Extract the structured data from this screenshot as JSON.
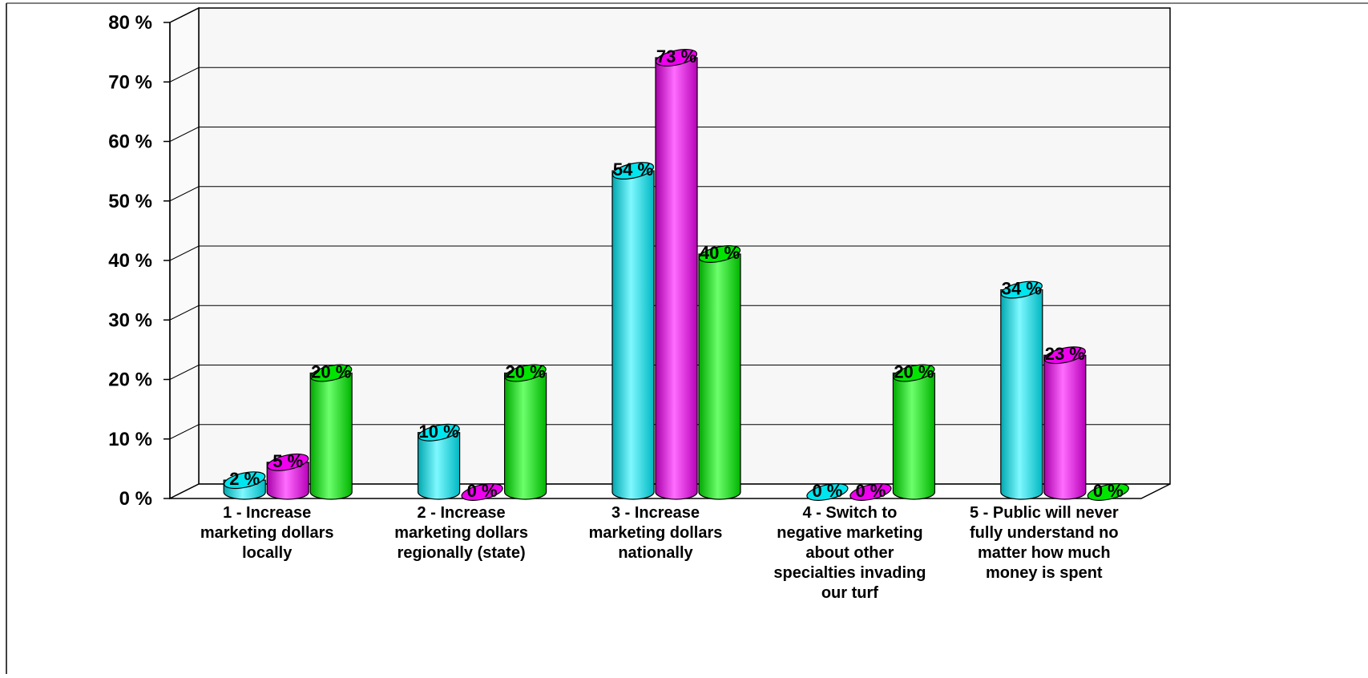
{
  "chart_data": {
    "type": "bar",
    "style": "3d-cylinder",
    "categories": [
      "1 - Increase marketing dollars locally",
      "2 - Increase marketing dollars regionally (state)",
      "3 - Increase marketing dollars nationally",
      "4 - Switch to negative marketing about other specialties invading our turf",
      "5 - Public will never fully understand no matter how much money is spent"
    ],
    "category_lines": [
      [
        "1 - Increase",
        "marketing dollars",
        "locally"
      ],
      [
        "2 - Increase",
        "marketing dollars",
        "regionally (state)"
      ],
      [
        "3 - Increase",
        "marketing dollars",
        "nationally"
      ],
      [
        "4 - Switch to",
        "negative marketing",
        "about other",
        "specialties invading",
        "our turf"
      ],
      [
        "5 - Public will never",
        "fully understand no",
        "matter how much",
        "money is spent"
      ]
    ],
    "series": [
      {
        "color": "#00e5ee",
        "values": [
          2,
          10,
          54,
          0,
          34
        ],
        "labels": [
          "2 %",
          "10 %",
          "54 %",
          "0 %",
          "34 %"
        ]
      },
      {
        "color": "#ee00ee",
        "values": [
          5,
          0,
          73,
          0,
          23
        ],
        "labels": [
          "5 %",
          "0 %",
          "73 %",
          "0 %",
          "23 %"
        ]
      },
      {
        "color": "#00e600",
        "values": [
          20,
          20,
          40,
          20,
          0
        ],
        "labels": [
          "20 %",
          "20 %",
          "40 %",
          "20 %",
          "0 %"
        ]
      }
    ],
    "ylim": [
      0,
      80
    ],
    "yticks": [
      {
        "value": 0,
        "label": "0 %"
      },
      {
        "value": 10,
        "label": "10 %"
      },
      {
        "value": 20,
        "label": "20 %"
      },
      {
        "value": 30,
        "label": "30 %"
      },
      {
        "value": 40,
        "label": "40 %"
      },
      {
        "value": 50,
        "label": "50 %"
      },
      {
        "value": 60,
        "label": "60 %"
      },
      {
        "value": 70,
        "label": "70 %"
      },
      {
        "value": 80,
        "label": "80 %"
      }
    ],
    "grid": true,
    "legend": "none",
    "title": "",
    "xlabel": "",
    "ylabel": ""
  }
}
